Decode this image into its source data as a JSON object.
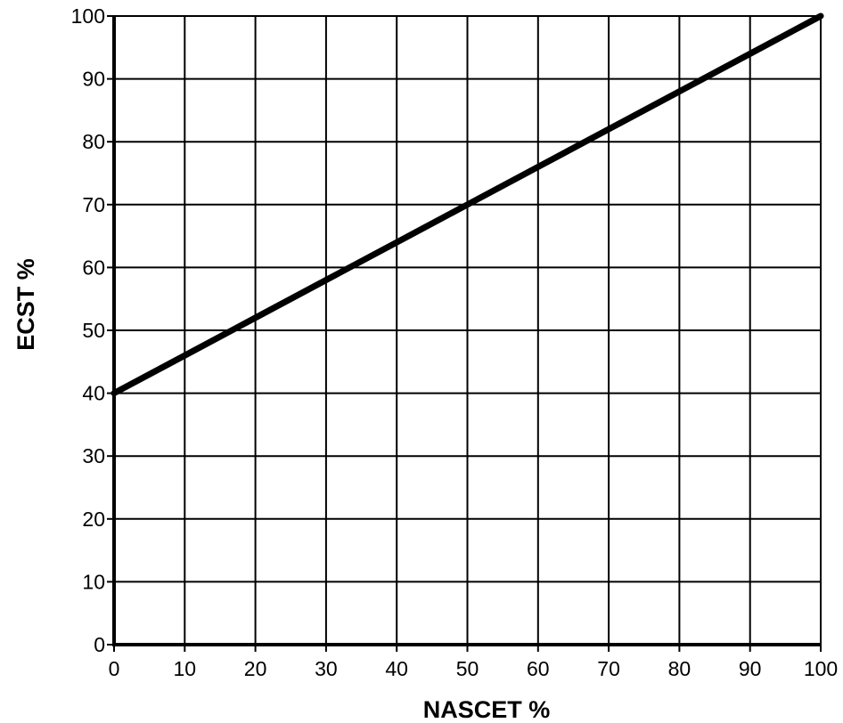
{
  "chart_data": {
    "type": "line",
    "title": "",
    "xlabel": "NASCET %",
    "ylabel": "ECST %",
    "xlim": [
      0,
      100
    ],
    "ylim": [
      0,
      100
    ],
    "x_ticks": [
      0,
      10,
      20,
      30,
      40,
      50,
      60,
      70,
      80,
      90,
      100
    ],
    "y_ticks": [
      0,
      10,
      20,
      30,
      40,
      50,
      60,
      70,
      80,
      90,
      100
    ],
    "x_tick_labels": [
      "0",
      "10",
      "20",
      "30",
      "40",
      "50",
      "60",
      "70",
      "80",
      "90",
      "100"
    ],
    "y_tick_labels": [
      "0",
      "10",
      "20",
      "30",
      "40",
      "50",
      "60",
      "70",
      "80",
      "90",
      "100"
    ],
    "grid": true,
    "legend": "none",
    "series": [
      {
        "x": [
          0,
          10,
          20,
          30,
          40,
          50,
          60,
          70,
          80,
          90,
          100
        ],
        "y": [
          40,
          46,
          52,
          58,
          64,
          70,
          76,
          82,
          88,
          94,
          100
        ],
        "color": "#000000"
      }
    ]
  }
}
